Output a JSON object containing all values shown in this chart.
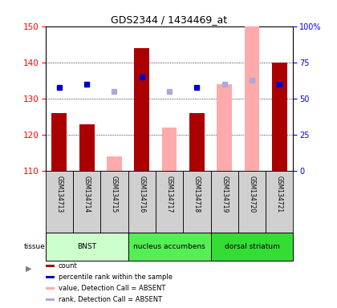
{
  "title": "GDS2344 / 1434469_at",
  "samples": [
    "GSM134713",
    "GSM134714",
    "GSM134715",
    "GSM134716",
    "GSM134717",
    "GSM134718",
    "GSM134719",
    "GSM134720",
    "GSM134721"
  ],
  "ylim": [
    110,
    150
  ],
  "y2lim": [
    0,
    100
  ],
  "yticks": [
    110,
    120,
    130,
    140,
    150
  ],
  "y2ticks": [
    0,
    25,
    50,
    75,
    100
  ],
  "count_present": [
    126,
    123,
    null,
    144,
    null,
    126,
    null,
    null,
    140
  ],
  "count_absent": [
    null,
    null,
    114,
    null,
    122,
    null,
    134,
    150,
    null
  ],
  "rank_present": [
    133,
    134,
    null,
    136,
    null,
    133,
    null,
    null,
    134
  ],
  "rank_absent": [
    null,
    null,
    132,
    null,
    132,
    null,
    134,
    135,
    null
  ],
  "tissue_groups": [
    {
      "label": "BNST",
      "start": 0,
      "end": 3,
      "color": "#ccffcc"
    },
    {
      "label": "nucleus accumbens",
      "start": 3,
      "end": 6,
      "color": "#55ee55"
    },
    {
      "label": "dorsal striatum",
      "start": 6,
      "end": 9,
      "color": "#33dd33"
    }
  ],
  "bar_color_present": "#aa0000",
  "bar_color_absent": "#ffaaaa",
  "dot_color_present": "#0000cc",
  "dot_color_absent": "#aaaadd",
  "label_bg": "#d0d0d0",
  "bg_color": "#ffffff"
}
